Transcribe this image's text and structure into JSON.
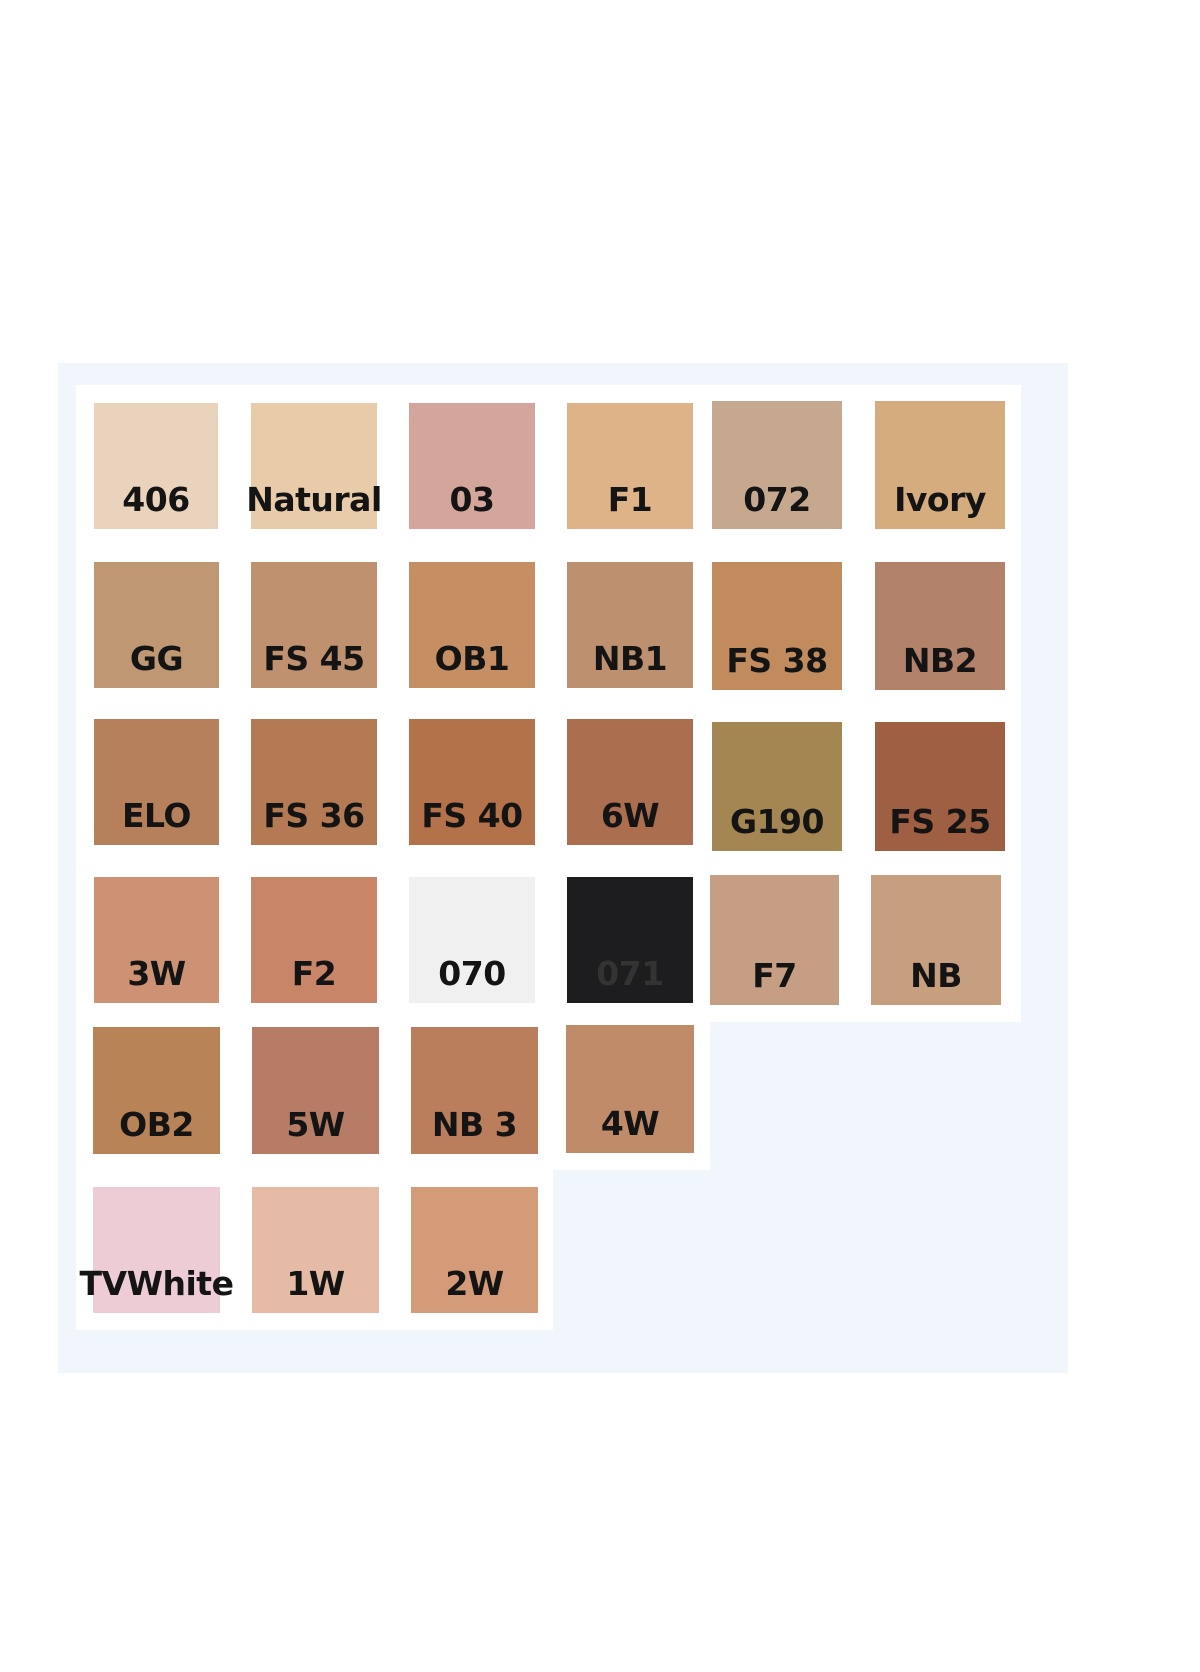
{
  "swatches": [
    {
      "label": "406",
      "color": "#ead3bc"
    },
    {
      "label": "Natural",
      "color": "#e8cba8"
    },
    {
      "label": "03",
      "color": "#d4a59b"
    },
    {
      "label": "F1",
      "color": "#deb387"
    },
    {
      "label": "072",
      "color": "#c6a88f"
    },
    {
      "label": "Ivory",
      "color": "#d4ac7d"
    },
    {
      "label": "GG",
      "color": "#bf9873"
    },
    {
      "label": "FS 45",
      "color": "#c0916f"
    },
    {
      "label": "OB1",
      "color": "#c58f63"
    },
    {
      "label": "NB1",
      "color": "#bd9170"
    },
    {
      "label": "FS 38",
      "color": "#c18b5e"
    },
    {
      "label": "NB2",
      "color": "#b3826b"
    },
    {
      "label": "ELO",
      "color": "#b5805a"
    },
    {
      "label": "FS 36",
      "color": "#b47a54"
    },
    {
      "label": "FS 40",
      "color": "#b37249"
    },
    {
      "label": "6W",
      "color": "#ab6e4f"
    },
    {
      "label": "G190",
      "color": "#a48652"
    },
    {
      "label": "FS 25",
      "color": "#9e5f42"
    },
    {
      "label": "3W",
      "color": "#cd9273"
    },
    {
      "label": "F2",
      "color": "#c98568"
    },
    {
      "label": "070",
      "color": "#f0f0f0"
    },
    {
      "label": "071",
      "color": "#1d1d1f",
      "text_color": "#333333"
    },
    {
      "label": "F7",
      "color": "#c59e83"
    },
    {
      "label": "NB",
      "color": "#c69f7e"
    },
    {
      "label": "OB2",
      "color": "#b98358"
    },
    {
      "label": "5W",
      "color": "#b67c66"
    },
    {
      "label": "NB 3",
      "color": "#bb7e5d"
    },
    {
      "label": "4W",
      "color": "#bf8b69"
    },
    {
      "label": "TVWhite",
      "color": "#edccd6"
    },
    {
      "label": "1W",
      "color": "#e6bba6"
    },
    {
      "label": "2W",
      "color": "#d39b78"
    }
  ]
}
